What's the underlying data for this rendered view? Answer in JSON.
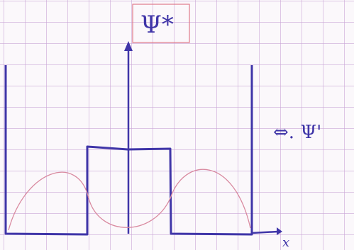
{
  "labels": {
    "top": "Ψ*",
    "right": "⇔. Ψ'",
    "axis": "x"
  }
}
